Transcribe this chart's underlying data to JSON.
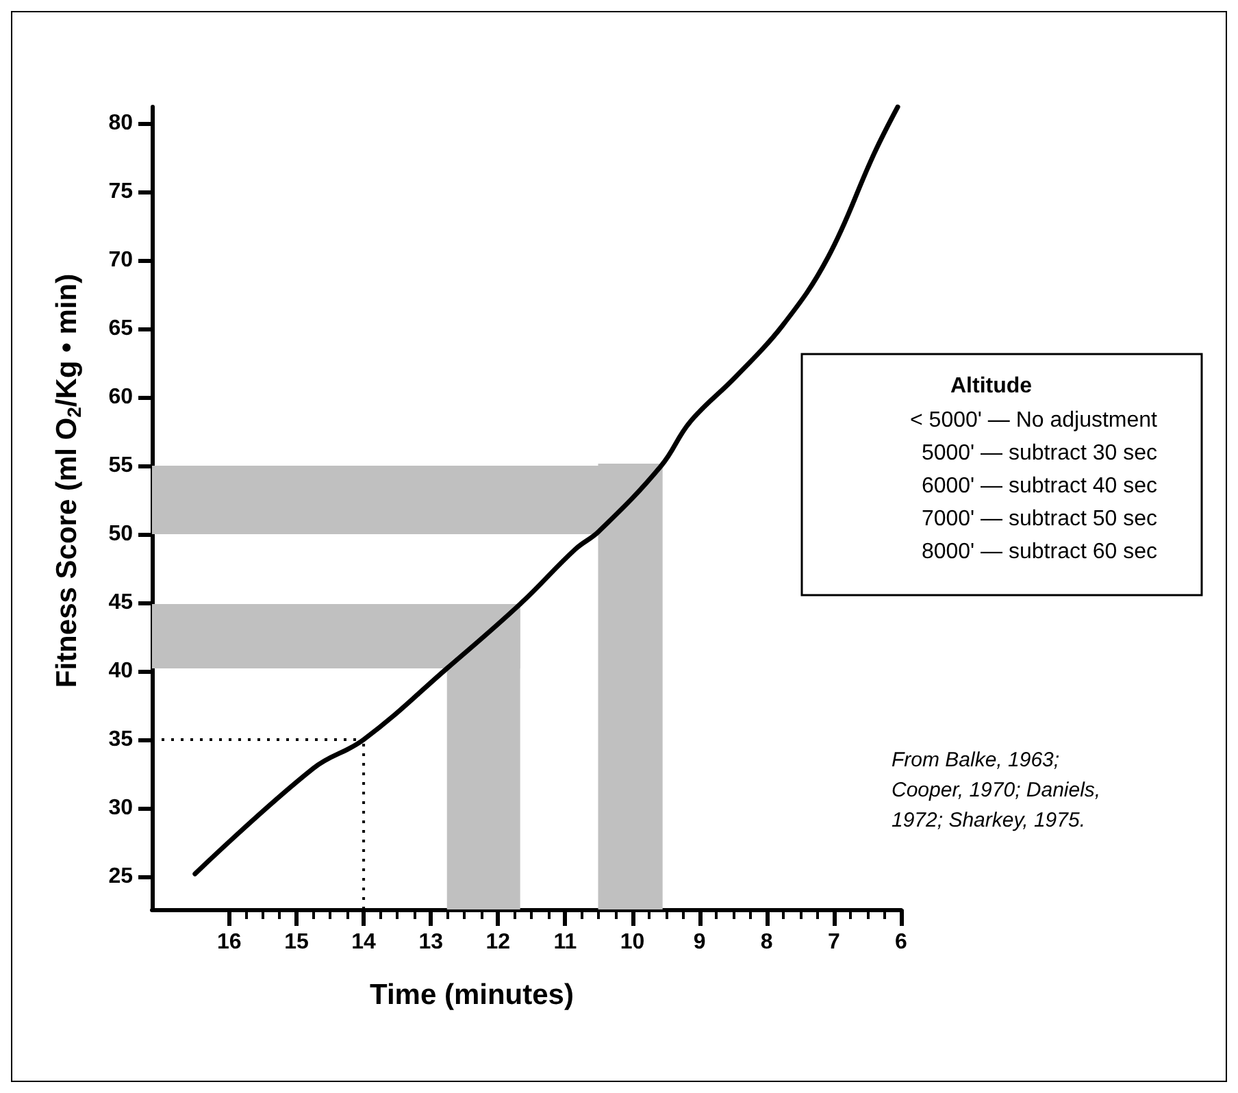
{
  "chart_data": {
    "type": "line",
    "xlabel": "Time (minutes)",
    "ylabel": "Fitness Score (ml O$_{2}$/Kg • min)",
    "x": [
      16.51,
      14.75,
      14,
      12.76,
      11.67,
      10.85,
      10.5,
      9.57,
      9.14,
      8.46,
      7.77,
      7.09,
      6.4,
      6.05
    ],
    "series": [
      {
        "color": "#000000",
        "values": [
          25.2,
          32.9,
          35,
          40.2,
          44.9,
          48.9,
          50.2,
          55,
          58.2,
          61.5,
          65.2,
          70.2,
          77.8,
          81.2
        ]
      }
    ],
    "xlim": [
      17.15,
      6
    ],
    "ylim": [
      22.6,
      81.2
    ],
    "xticks": [
      16,
      {
        "value": 15.75,
        "label": null
      },
      {
        "value": 15.5,
        "label": null
      },
      {
        "value": 15.25,
        "label": null
      },
      15,
      {
        "value": 14.75,
        "label": null
      },
      {
        "value": 14.5,
        "label": null
      },
      {
        "value": 14.25,
        "label": null
      },
      14,
      {
        "value": 13.75,
        "label": null
      },
      {
        "value": 13.5,
        "label": null
      },
      {
        "value": 13.25,
        "label": null
      },
      13,
      {
        "value": 12.75,
        "label": null
      },
      {
        "value": 12.5,
        "label": null
      },
      {
        "value": 12.25,
        "label": null
      },
      12,
      {
        "value": 11.75,
        "label": null
      },
      {
        "value": 11.5,
        "label": null
      },
      {
        "value": 11.25,
        "label": null
      },
      11,
      {
        "value": 10.75,
        "label": null
      },
      {
        "value": 10.5,
        "label": null
      },
      {
        "value": 10.25,
        "label": null
      },
      10,
      {
        "value": 9.75,
        "label": null
      },
      {
        "value": 9.5,
        "label": null
      },
      {
        "value": 9.25,
        "label": null
      },
      9,
      {
        "value": 8.75,
        "label": null
      },
      {
        "value": 8.5,
        "label": null
      },
      {
        "value": 8.25,
        "label": null
      },
      8,
      {
        "value": 7.75,
        "label": null
      },
      {
        "value": 7.5,
        "label": null
      },
      {
        "value": 7.25,
        "label": null
      },
      7,
      {
        "value": 6.75,
        "label": null
      },
      {
        "value": 6.5,
        "label": null
      },
      {
        "value": 6.25,
        "label": null
      },
      6
    ],
    "yticks": [
      25,
      30,
      35,
      40,
      45,
      50,
      55,
      60,
      65,
      70,
      75,
      80
    ],
    "bands": [
      {
        "axis": "y",
        "from": 50,
        "to": 55,
        "color": "#c0c0c0"
      },
      {
        "axis": "y",
        "from": 40.2,
        "to": 44.9,
        "color": "#c0c0c0"
      },
      {
        "axis": "x",
        "from": 12.76,
        "to": 11.67,
        "color": "#c0c0c0"
      },
      {
        "axis": "x",
        "from": 10.51,
        "to": 9.55,
        "color": "#c0c0c0"
      }
    ],
    "ref_lines": [
      {
        "axis": "y",
        "value": 35,
        "line_style": "dotted",
        "color": "#000000"
      },
      {
        "axis": "x",
        "value": 14,
        "line_style": "dotted",
        "color": "#000000"
      }
    ],
    "annotations": [
      "Altitude\n< 5000' — No adjustment\n5000' — subtract 30 sec\n6000' — subtract 40 sec\n7000' — subtract 50 sec\n8000' — subtract 60 sec",
      "From Balke, 1963;\nCooper, 1970; Daniels,\n1972; Sharkey, 1975."
    ],
    "grid": false,
    "marker": "none",
    "line_style": "solid"
  }
}
